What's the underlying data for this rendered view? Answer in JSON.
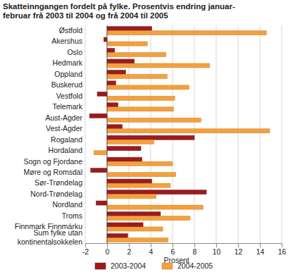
{
  "chart_data": {
    "type": "bar",
    "orientation": "horizontal",
    "title": "Skatteinngangen fordelt på fylke. Prosentvis endring januar-\nfebruar frå 2003 til 2004 og frå 2004 til 2005",
    "x_label": "Prosent",
    "categories": [
      "Østfold",
      "Akershus",
      "Oslo",
      "Hedmark",
      "Oppland",
      "Buskerud",
      "Vestfold",
      "Telemark",
      "Aust-Agder",
      "Vest-Agder",
      "Rogaland",
      "Hordaland",
      "Sogn og Fjordane",
      "Møre og Romsdal",
      "Sør-Trøndelag",
      "Nord-Trøndelag",
      "Nordland",
      "Troms",
      "Finnmark Finnmárku",
      "Sum fylke utan\nkontinentalsokkelen"
    ],
    "series": [
      {
        "name": "2003-2004",
        "color": "#9b1b1e",
        "values": [
          4.1,
          -0.3,
          0.7,
          2.5,
          1.7,
          0.8,
          -0.9,
          1.0,
          -1.6,
          1.4,
          8.0,
          3.1,
          3.2,
          -1.5,
          4.1,
          9.1,
          -1.0,
          4.9,
          3.3,
          1.9
        ]
      },
      {
        "name": "2004-2005",
        "color": "#f5a03c",
        "values": [
          14.6,
          3.7,
          5.4,
          9.4,
          5.5,
          7.5,
          6.2,
          6.1,
          8.6,
          14.9,
          4.3,
          -1.2,
          6.0,
          6.3,
          5.8,
          4.5,
          8.8,
          7.6,
          5.1,
          5.6
        ]
      }
    ],
    "xlim": [
      -2,
      16
    ],
    "xticks": [
      -2,
      0,
      2,
      4,
      6,
      8,
      10,
      12,
      14,
      16
    ],
    "grid": true,
    "legend": "bottom"
  }
}
